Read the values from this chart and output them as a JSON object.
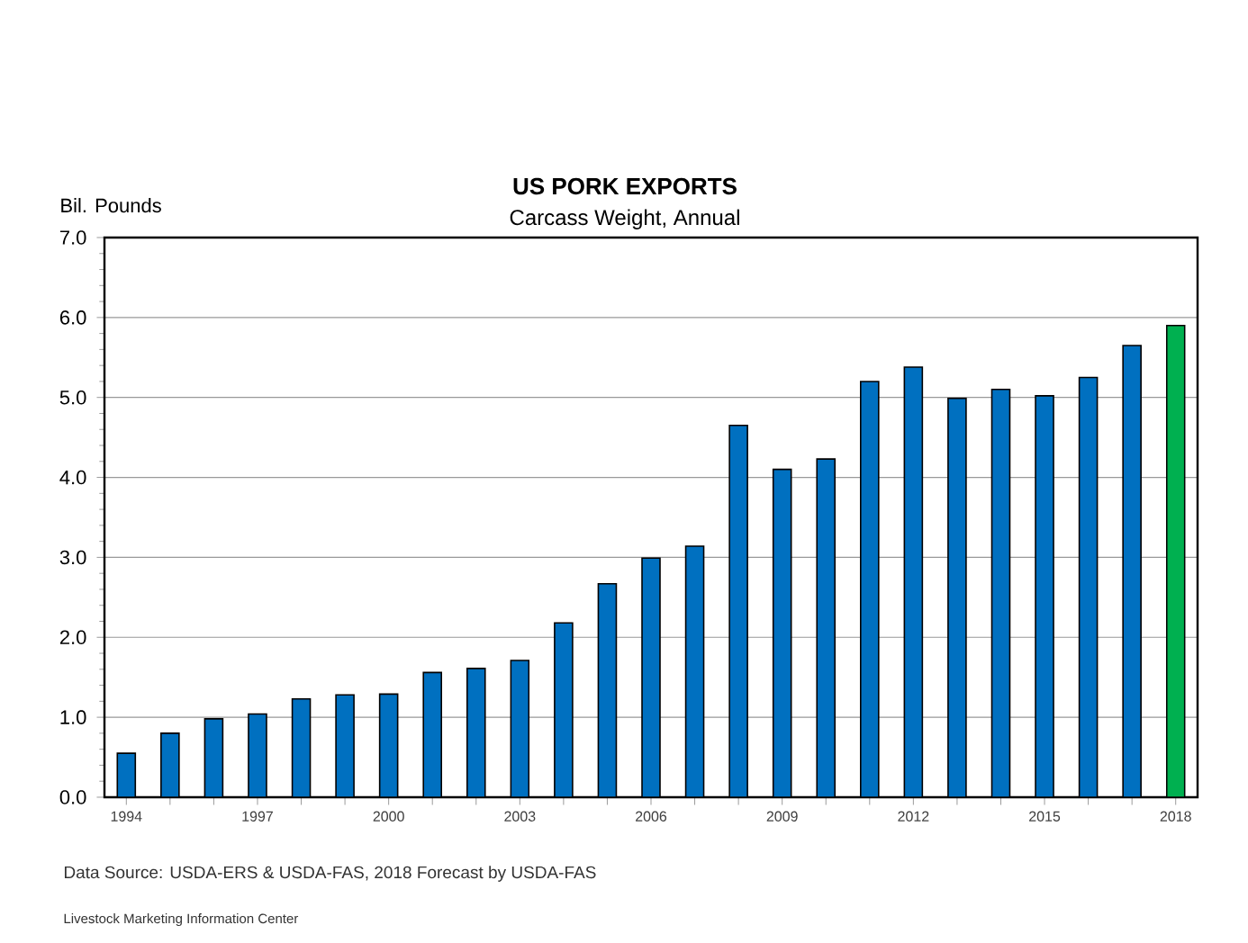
{
  "chart_data": {
    "type": "bar",
    "title": "US PORK EXPORTS",
    "subtitle": "Carcass Weight, Annual",
    "ylabel": "Bil. Pounds",
    "categories": [
      "1994",
      null,
      null,
      "1997",
      null,
      null,
      "2000",
      null,
      null,
      "2003",
      null,
      null,
      "2006",
      null,
      null,
      "2009",
      null,
      null,
      "2012",
      null,
      null,
      "2015",
      null,
      null,
      "2018"
    ],
    "values": [
      0.55,
      0.8,
      0.98,
      1.04,
      1.23,
      1.28,
      1.29,
      1.56,
      1.61,
      1.71,
      2.18,
      2.67,
      2.99,
      3.14,
      4.65,
      4.1,
      4.23,
      5.2,
      5.38,
      4.99,
      5.1,
      5.02,
      5.25,
      5.65,
      5.9
    ],
    "colors": [
      "#0070c0",
      "#0070c0",
      "#0070c0",
      "#0070c0",
      "#0070c0",
      "#0070c0",
      "#0070c0",
      "#0070c0",
      "#0070c0",
      "#0070c0",
      "#0070c0",
      "#0070c0",
      "#0070c0",
      "#0070c0",
      "#0070c0",
      "#0070c0",
      "#0070c0",
      "#0070c0",
      "#0070c0",
      "#0070c0",
      "#0070c0",
      "#0070c0",
      "#0070c0",
      "#0070c0",
      "#00b050"
    ],
    "ylim": [
      0,
      7
    ],
    "yticks": [
      {
        "value": 0,
        "label": "0.0"
      },
      {
        "value": 1,
        "label": "1.0"
      },
      {
        "value": 2,
        "label": "2.0"
      },
      {
        "value": 3,
        "label": "3.0"
      },
      {
        "value": 4,
        "label": "4.0"
      },
      {
        "value": 5,
        "label": "5.0"
      },
      {
        "value": 6,
        "label": "6.0"
      },
      {
        "value": 7,
        "label": "7.0"
      }
    ],
    "grid": "y",
    "annotations": [
      "Data Source:  USDA-ERS & USDA-FAS, 2018 Forecast by USDA-FAS",
      "Livestock Marketing Information Center"
    ]
  }
}
